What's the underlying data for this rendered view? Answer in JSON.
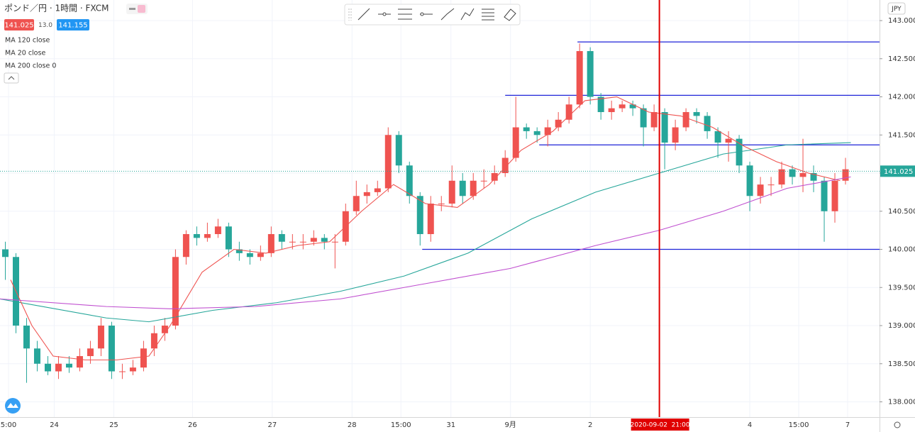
{
  "chart_data": {
    "type": "candlestick",
    "title": "ポンド／円 · 1時間 · FXCM",
    "header": {
      "bid": 141.025,
      "spread": {
        "value": 13,
        "label": "13.0"
      },
      "ask": 141.155
    },
    "currency": "JPY",
    "up_color": "#ef5350",
    "down_color": "#26a69a",
    "xlim": [
      0,
      82.7
    ],
    "ylim": [
      137.8,
      143.27
    ],
    "grid": true,
    "yticks": [
      {
        "value": 138,
        "label": "138.000"
      },
      {
        "value": 138.5,
        "label": "138.500"
      },
      {
        "value": 139,
        "label": "139.000"
      },
      {
        "value": 139.5,
        "label": "139.500"
      },
      {
        "value": 140,
        "label": "140.000"
      },
      {
        "value": 140.5,
        "label": "140.500"
      },
      {
        "value": 141,
        "label": "141.000"
      },
      {
        "value": 141.5,
        "label": "141.500"
      },
      {
        "value": 142,
        "label": "142.000"
      },
      {
        "value": 142.5,
        "label": "142.500"
      },
      {
        "value": 143,
        "label": "143.000"
      }
    ],
    "xticks": [
      {
        "value": 0.8,
        "label": "5:00"
      },
      {
        "value": 5.1,
        "label": "24"
      },
      {
        "value": 10.7,
        "label": "25"
      },
      {
        "value": 18.1,
        "label": "26"
      },
      {
        "value": 25.6,
        "label": "27"
      },
      {
        "value": 33.1,
        "label": "28"
      },
      {
        "value": 37.7,
        "label": "15:00"
      },
      {
        "value": 42.4,
        "label": "31"
      },
      {
        "value": 48,
        "label": "9月"
      },
      {
        "value": 55.5,
        "label": "2"
      },
      {
        "value": 70.5,
        "label": "4"
      },
      {
        "value": 75.1,
        "label": "15:00"
      },
      {
        "value": 79.7,
        "label": "7"
      }
    ],
    "open": [
      140.0,
      139.9,
      139.0,
      138.7,
      138.5,
      138.4,
      138.5,
      138.45,
      138.6,
      138.7,
      139.0,
      138.4,
      138.4,
      138.45,
      138.7,
      138.9,
      139.0,
      139.9,
      140.2,
      140.15,
      140.2,
      140.3,
      140.0,
      139.95,
      139.9,
      139.95,
      140.2,
      140.1,
      140.1,
      140.1,
      140.15,
      140.1,
      140.1,
      140.5,
      140.7,
      140.75,
      140.8,
      141.5,
      141.1,
      140.7,
      140.2,
      140.6,
      140.6,
      140.9,
      140.7,
      140.9,
      140.9,
      141.0,
      141.2,
      141.6,
      141.55,
      141.5,
      141.6,
      141.7,
      141.9,
      142.6,
      142.0,
      141.8,
      141.85,
      141.9,
      141.85,
      141.6,
      141.8,
      141.4,
      141.6,
      141.8,
      141.75,
      141.55,
      141.4,
      141.45,
      141.1,
      140.7,
      140.85,
      140.85,
      141.05,
      140.95,
      141.0,
      140.9,
      140.5,
      140.9
    ],
    "high": [
      140.1,
      139.95,
      139.1,
      138.8,
      138.6,
      138.6,
      138.6,
      138.7,
      138.8,
      139.1,
      139.05,
      138.5,
      138.55,
      138.8,
      139.0,
      139.1,
      140.0,
      140.25,
      140.3,
      140.35,
      140.4,
      140.35,
      140.1,
      140.0,
      140.05,
      140.3,
      140.25,
      140.2,
      140.2,
      140.25,
      140.2,
      140.2,
      140.6,
      140.9,
      140.85,
      140.9,
      141.6,
      141.55,
      141.15,
      140.75,
      140.7,
      140.7,
      141.1,
      141.0,
      141.0,
      141.05,
      141.1,
      141.3,
      142.0,
      141.65,
      141.6,
      141.7,
      141.8,
      142.0,
      142.7,
      142.65,
      142.05,
      141.95,
      141.95,
      141.95,
      141.9,
      141.9,
      141.85,
      141.7,
      141.85,
      141.85,
      141.8,
      141.6,
      141.55,
      141.5,
      141.15,
      140.95,
      140.95,
      141.15,
      141.1,
      141.45,
      141.1,
      140.95,
      141.0,
      141.2
    ],
    "low": [
      139.6,
      138.9,
      138.25,
      138.4,
      138.35,
      138.3,
      138.38,
      138.4,
      138.5,
      138.6,
      138.3,
      138.3,
      138.35,
      138.4,
      138.6,
      138.8,
      138.95,
      139.8,
      140.05,
      140.1,
      140.15,
      139.9,
      139.85,
      139.8,
      139.85,
      139.9,
      140.0,
      140.0,
      140.0,
      140.05,
      140.0,
      139.75,
      140.05,
      140.45,
      140.6,
      140.7,
      140.75,
      141.0,
      140.6,
      140.05,
      140.1,
      140.5,
      140.55,
      140.6,
      140.65,
      140.8,
      140.85,
      140.95,
      141.15,
      141.45,
      141.4,
      141.35,
      141.55,
      141.65,
      141.85,
      141.9,
      141.7,
      141.7,
      141.8,
      141.75,
      141.35,
      141.55,
      141.05,
      141.3,
      141.55,
      141.65,
      141.45,
      141.2,
      141.15,
      141.0,
      140.5,
      140.6,
      140.7,
      140.8,
      140.85,
      140.75,
      140.75,
      140.1,
      140.35,
      140.85
    ],
    "close": [
      139.9,
      139.0,
      138.7,
      138.5,
      138.4,
      138.5,
      138.45,
      138.6,
      138.7,
      139.0,
      138.4,
      138.4,
      138.45,
      138.7,
      138.9,
      139.0,
      139.9,
      140.2,
      140.15,
      140.2,
      140.3,
      140.0,
      139.95,
      139.9,
      139.95,
      140.2,
      140.1,
      140.1,
      140.1,
      140.15,
      140.1,
      140.1,
      140.5,
      140.7,
      140.75,
      140.8,
      141.5,
      141.1,
      140.7,
      140.2,
      140.6,
      140.6,
      140.9,
      140.7,
      140.9,
      140.9,
      141.0,
      141.2,
      141.6,
      141.55,
      141.5,
      141.6,
      141.7,
      141.9,
      142.6,
      142.0,
      141.8,
      141.85,
      141.9,
      141.85,
      141.6,
      141.8,
      141.4,
      141.6,
      141.8,
      141.75,
      141.55,
      141.4,
      141.45,
      141.1,
      140.7,
      140.85,
      140.85,
      141.05,
      140.95,
      141.0,
      140.9,
      140.5,
      140.9,
      141.05
    ],
    "series": [
      {
        "name": "MA 120 close",
        "color": "#26a69a",
        "x": [
          0,
          10,
          14,
          20,
          26,
          32,
          38,
          44,
          50,
          56,
          62,
          68,
          74,
          80
        ],
        "values": [
          139.35,
          139.1,
          139.05,
          139.2,
          139.3,
          139.45,
          139.65,
          139.95,
          140.4,
          140.75,
          141.0,
          141.25,
          141.37,
          141.4
        ]
      },
      {
        "name": "MA 20 close",
        "color": "#ef5350",
        "x": [
          1,
          3,
          5,
          8,
          11,
          14,
          16,
          19,
          22,
          25,
          28,
          31,
          34,
          37,
          40,
          43,
          46,
          49,
          52,
          55,
          58,
          61,
          64,
          67,
          70,
          73,
          76,
          79
        ],
        "values": [
          139.6,
          139.0,
          138.6,
          138.55,
          138.55,
          138.6,
          139.0,
          139.7,
          140.0,
          139.95,
          140.05,
          140.1,
          140.5,
          140.85,
          140.6,
          140.55,
          140.85,
          141.3,
          141.55,
          141.95,
          142.0,
          141.8,
          141.75,
          141.6,
          141.35,
          141.15,
          141.0,
          140.9
        ]
      },
      {
        "name": "MA 200 close 0",
        "color": "#c050d0",
        "x": [
          0,
          10,
          16,
          24,
          32,
          40,
          48,
          56,
          62,
          68,
          74,
          80
        ],
        "values": [
          139.35,
          139.25,
          139.22,
          139.25,
          139.35,
          139.55,
          139.75,
          140.05,
          140.25,
          140.5,
          140.8,
          140.95
        ]
      }
    ],
    "levels": [
      {
        "value": 142.72,
        "start": 54.3
      },
      {
        "value": 142.02,
        "start": 47.5
      },
      {
        "value": 141.37,
        "start": 50.7
      },
      {
        "value": 140.0,
        "start": 39.7
      }
    ],
    "crosshair": {
      "x": 62,
      "label": "2020-09-02  21:00"
    },
    "last_price": 141.025
  }
}
